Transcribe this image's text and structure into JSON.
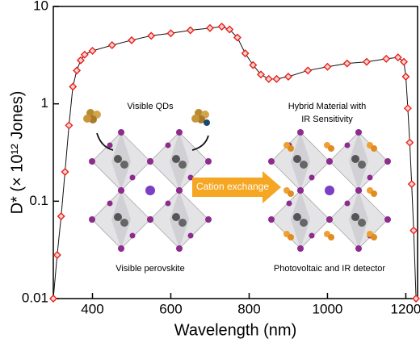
{
  "chart_data": {
    "type": "line",
    "ylabel": "D* (× 10¹² Jones)",
    "xlabel": "Wavelength (nm)",
    "yscale": "log",
    "xlim": [
      300,
      1230
    ],
    "xticks": [
      400,
      600,
      800,
      1000,
      1200
    ],
    "ylim": [
      0.01,
      10
    ],
    "yticks": [
      0.01,
      0.1,
      1,
      10
    ],
    "x": [
      300,
      310,
      320,
      330,
      340,
      350,
      360,
      370,
      380,
      400,
      450,
      500,
      550,
      600,
      650,
      700,
      730,
      750,
      770,
      790,
      810,
      830,
      850,
      870,
      900,
      950,
      1000,
      1050,
      1100,
      1150,
      1180,
      1195,
      1200,
      1205,
      1210,
      1215,
      1220,
      1226
    ],
    "series": [
      {
        "name": "D*",
        "color": "#e8201a",
        "values": [
          0.01,
          0.028,
          0.07,
          0.2,
          0.6,
          1.5,
          2.2,
          2.8,
          3.2,
          3.5,
          4.0,
          4.5,
          5.0,
          5.3,
          5.7,
          6.0,
          6.2,
          5.8,
          4.8,
          3.3,
          2.5,
          2.0,
          1.8,
          1.8,
          1.9,
          2.2,
          2.4,
          2.6,
          2.7,
          2.9,
          3.0,
          2.7,
          1.9,
          0.9,
          0.4,
          0.15,
          0.05,
          0.01
        ]
      }
    ],
    "annotations": [
      "Visible QDs",
      "Hybrid Material with",
      "IR Sensitivity",
      "Cation exchange",
      "Visible perovskite",
      "Photovoltaic and IR detector"
    ]
  }
}
